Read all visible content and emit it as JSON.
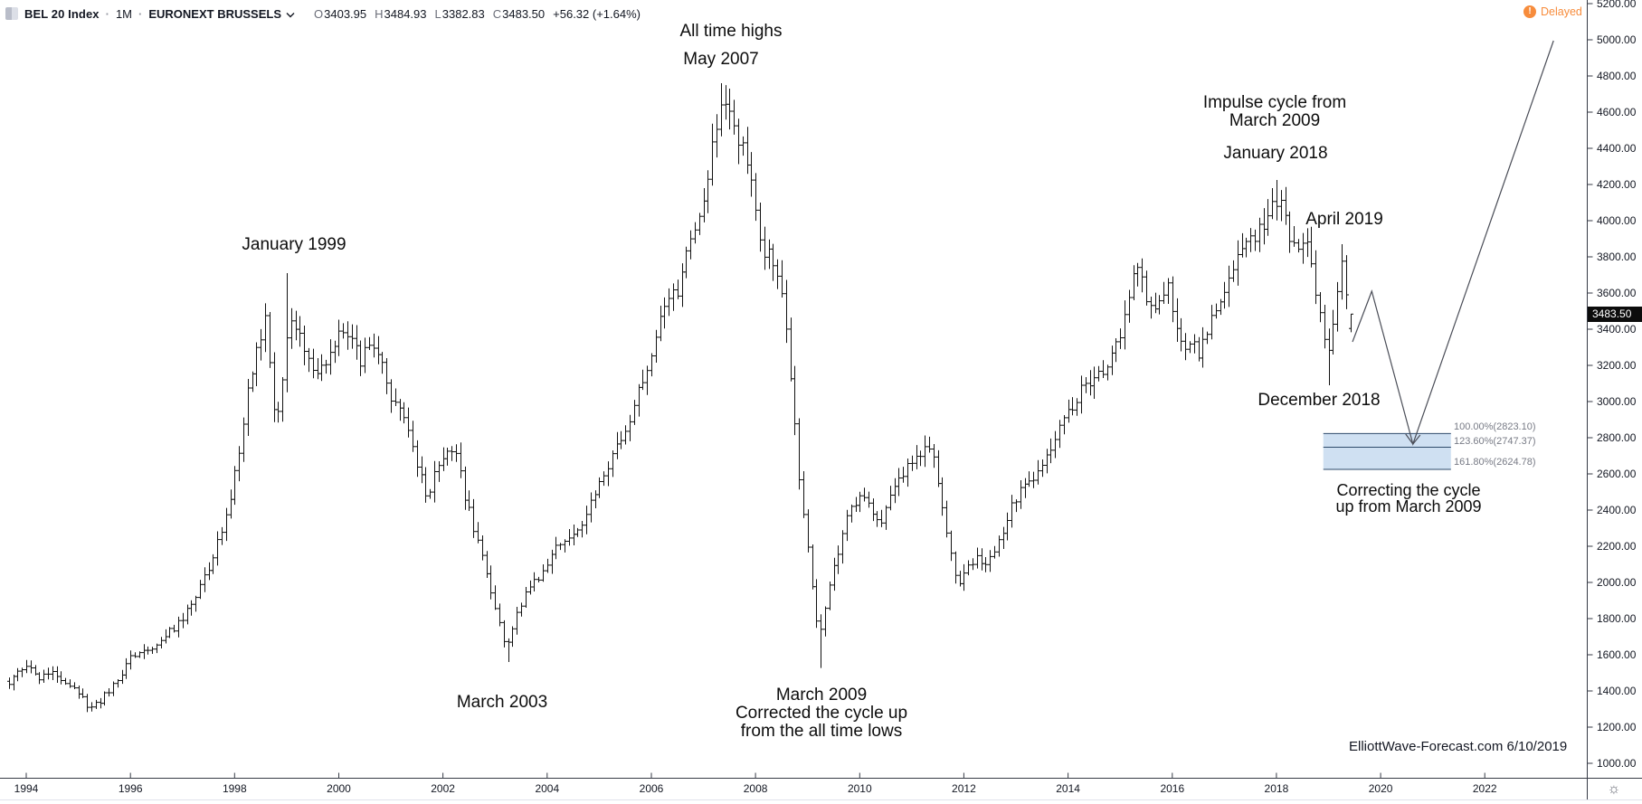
{
  "header": {
    "symbol": "BEL 20 Index",
    "separator": "·",
    "interval": "1M",
    "exchange": "EURONEXT BRUSSELS",
    "ohlc": {
      "o_label": "O",
      "o_value": "3403.95",
      "h_label": "H",
      "h_value": "3484.93",
      "l_label": "L",
      "l_value": "3382.83",
      "c_label": "C",
      "c_value": "3483.50",
      "change": "+56.32 (+1.64%)"
    },
    "delayed_badge": {
      "icon_glyph": "!",
      "label": "Delayed"
    }
  },
  "price_axis": {
    "last_price_label": "3483.50",
    "ticks": [
      {
        "label": "5200.00",
        "value": 5200
      },
      {
        "label": "5000.00",
        "value": 5000
      },
      {
        "label": "4800.00",
        "value": 4800
      },
      {
        "label": "4600.00",
        "value": 4600
      },
      {
        "label": "4400.00",
        "value": 4400
      },
      {
        "label": "4200.00",
        "value": 4200
      },
      {
        "label": "4000.00",
        "value": 4000
      },
      {
        "label": "3800.00",
        "value": 3800
      },
      {
        "label": "3600.00",
        "value": 3600
      },
      {
        "label": "3400.00",
        "value": 3400
      },
      {
        "label": "3200.00",
        "value": 3200
      },
      {
        "label": "3000.00",
        "value": 3000
      },
      {
        "label": "2800.00",
        "value": 2800
      },
      {
        "label": "2600.00",
        "value": 2600
      },
      {
        "label": "2400.00",
        "value": 2400
      },
      {
        "label": "2200.00",
        "value": 2200
      },
      {
        "label": "2000.00",
        "value": 2000
      },
      {
        "label": "1800.00",
        "value": 1800
      },
      {
        "label": "1600.00",
        "value": 1600
      },
      {
        "label": "1400.00",
        "value": 1400
      },
      {
        "label": "1200.00",
        "value": 1200
      },
      {
        "label": "1000.00",
        "value": 1000
      }
    ]
  },
  "time_axis": {
    "ticks": [
      {
        "label": "1994",
        "year": 1994
      },
      {
        "label": "1996",
        "year": 1996
      },
      {
        "label": "1998",
        "year": 1998
      },
      {
        "label": "2000",
        "year": 2000
      },
      {
        "label": "2002",
        "year": 2002
      },
      {
        "label": "2004",
        "year": 2004
      },
      {
        "label": "2006",
        "year": 2006
      },
      {
        "label": "2008",
        "year": 2008
      },
      {
        "label": "2010",
        "year": 2010
      },
      {
        "label": "2012",
        "year": 2012
      },
      {
        "label": "2014",
        "year": 2014
      },
      {
        "label": "2016",
        "year": 2016
      },
      {
        "label": "2018",
        "year": 2018
      },
      {
        "label": "2020",
        "year": 2020
      },
      {
        "label": "2022",
        "year": 2022
      }
    ]
  },
  "annotations": {
    "all_time_highs": "All time highs",
    "may_2007": "May 2007",
    "january_1999": "January 1999",
    "march_2003": "March 2003",
    "march_2009_block": {
      "line1": "March 2009",
      "line2": "Corrected the cycle up",
      "line3": "from the all time lows"
    },
    "impulse_block": {
      "line1": "Impulse cycle from",
      "line2": "March 2009"
    },
    "january_2018": "January 2018",
    "april_2019": "April 2019",
    "december_2018": "December 2018",
    "correcting_block": {
      "line1": "Correcting the cycle",
      "line2": "up from March 2009"
    },
    "watermark": "ElliottWave-Forecast.com 6/10/2019"
  },
  "toolbar": {
    "settings_icon_glyph": "☼"
  },
  "colors": {
    "bar": "#111111",
    "axis_line": "#363a45",
    "axis_text": "#131722",
    "delayed_orange": "#f78c3c",
    "fib_fill": "#cfe0f2",
    "fib_line": "#2e4a6b",
    "fib_text": "#787b86",
    "projection_line": "#4a4d57",
    "price_tag_bg": "#0c0c0c"
  },
  "chart_data": {
    "type": "ohlc-bar",
    "title": "BEL 20 Index, 1-month bars, EURONEXT BRUSSELS (delayed)",
    "x_axis": {
      "unit": "year",
      "start_year": 1993.667,
      "end_year": 2019.417,
      "bars_per_year": 12
    },
    "y_axis": {
      "min": 1000,
      "max": 5200,
      "tick_step": 200
    },
    "anchor_closes_year_price": [
      [
        1993.67,
        1450
      ],
      [
        1994.0,
        1545
      ],
      [
        1994.25,
        1470
      ],
      [
        1994.5,
        1525
      ],
      [
        1994.75,
        1450
      ],
      [
        1995.0,
        1385
      ],
      [
        1995.25,
        1295
      ],
      [
        1995.6,
        1405
      ],
      [
        1996.0,
        1575
      ],
      [
        1996.4,
        1635
      ],
      [
        1996.8,
        1735
      ],
      [
        1997.2,
        1895
      ],
      [
        1997.6,
        2155
      ],
      [
        1997.95,
        2510
      ],
      [
        1998.2,
        2960
      ],
      [
        1998.45,
        3330
      ],
      [
        1998.58,
        3450
      ],
      [
        1998.8,
        2830
      ],
      [
        1999.04,
        3490
      ],
      [
        1999.3,
        3300
      ],
      [
        1999.6,
        3130
      ],
      [
        1999.9,
        3290
      ],
      [
        2000.1,
        3430
      ],
      [
        2000.4,
        3230
      ],
      [
        2000.7,
        3340
      ],
      [
        2001.0,
        3030
      ],
      [
        2001.3,
        2890
      ],
      [
        2001.7,
        2430
      ],
      [
        2001.95,
        2710
      ],
      [
        2002.2,
        2740
      ],
      [
        2002.5,
        2390
      ],
      [
        2002.8,
        2090
      ],
      [
        2003.2,
        1650
      ],
      [
        2003.5,
        1890
      ],
      [
        2003.9,
        2065
      ],
      [
        2004.3,
        2245
      ],
      [
        2004.7,
        2345
      ],
      [
        2005.0,
        2545
      ],
      [
        2005.4,
        2785
      ],
      [
        2005.8,
        3085
      ],
      [
        2006.2,
        3485
      ],
      [
        2006.5,
        3625
      ],
      [
        2006.9,
        4025
      ],
      [
        2007.2,
        4430
      ],
      [
        2007.37,
        4640
      ],
      [
        2007.6,
        4475
      ],
      [
        2007.9,
        4285
      ],
      [
        2008.1,
        3885
      ],
      [
        2008.4,
        3725
      ],
      [
        2008.6,
        3385
      ],
      [
        2008.83,
        2605
      ],
      [
        2009.04,
        2085
      ],
      [
        2009.21,
        1690
      ],
      [
        2009.5,
        2085
      ],
      [
        2009.8,
        2425
      ],
      [
        2010.1,
        2475
      ],
      [
        2010.4,
        2335
      ],
      [
        2010.8,
        2585
      ],
      [
        2011.1,
        2695
      ],
      [
        2011.4,
        2745
      ],
      [
        2011.65,
        2265
      ],
      [
        2011.9,
        1985
      ],
      [
        2012.2,
        2135
      ],
      [
        2012.45,
        2085
      ],
      [
        2012.8,
        2335
      ],
      [
        2013.1,
        2535
      ],
      [
        2013.5,
        2645
      ],
      [
        2013.9,
        2885
      ],
      [
        2014.3,
        3085
      ],
      [
        2014.7,
        3185
      ],
      [
        2015.0,
        3345
      ],
      [
        2015.3,
        3725
      ],
      [
        2015.6,
        3535
      ],
      [
        2015.9,
        3635
      ],
      [
        2016.15,
        3295
      ],
      [
        2016.5,
        3285
      ],
      [
        2016.8,
        3485
      ],
      [
        2017.1,
        3645
      ],
      [
        2017.4,
        3885
      ],
      [
        2017.8,
        3985
      ],
      [
        2018.04,
        4120
      ],
      [
        2018.3,
        3885
      ],
      [
        2018.6,
        3835
      ],
      [
        2018.8,
        3525
      ],
      [
        2018.96,
        3230
      ],
      [
        2019.12,
        3530
      ],
      [
        2019.29,
        3800
      ],
      [
        2019.37,
        3404
      ],
      [
        2019.42,
        3483.5
      ]
    ],
    "key_bars": [
      {
        "name": "January 1999 high",
        "year": 1999.04,
        "high": 3710
      },
      {
        "name": "March 2003 low",
        "year": 2003.21,
        "low": 1560
      },
      {
        "name": "May 2007 all-time high",
        "year": 2007.37,
        "high": 4760,
        "close": 4640
      },
      {
        "name": "March 2009 low",
        "year": 2009.21,
        "low": 1527
      },
      {
        "name": "January 2018 high",
        "year": 2018.04,
        "high": 4225
      },
      {
        "name": "December 2018 low",
        "year": 2018.96,
        "low": 3090
      },
      {
        "name": "April 2019 high",
        "year": 2019.29,
        "high": 3870
      },
      {
        "name": "June 2019 last bar",
        "year": 2019.42,
        "open": 3403.95,
        "high": 3484.93,
        "low": 3382.83,
        "close": 3483.5
      }
    ],
    "fibonacci_extension": {
      "box_year_range": [
        2018.9,
        2021.35
      ],
      "levels": [
        {
          "label": "100.00%(2823.10)",
          "pct": 100.0,
          "price": 2823.1
        },
        {
          "label": "123.60%(2747.37)",
          "pct": 123.6,
          "price": 2747.37
        },
        {
          "label": "161.80%(2624.78)",
          "pct": 161.8,
          "price": 2624.78
        }
      ]
    },
    "projection_path_year_price": [
      [
        2019.46,
        3330
      ],
      [
        2019.83,
        3610
      ],
      [
        2020.62,
        2765
      ],
      [
        2023.32,
        4995
      ]
    ]
  }
}
